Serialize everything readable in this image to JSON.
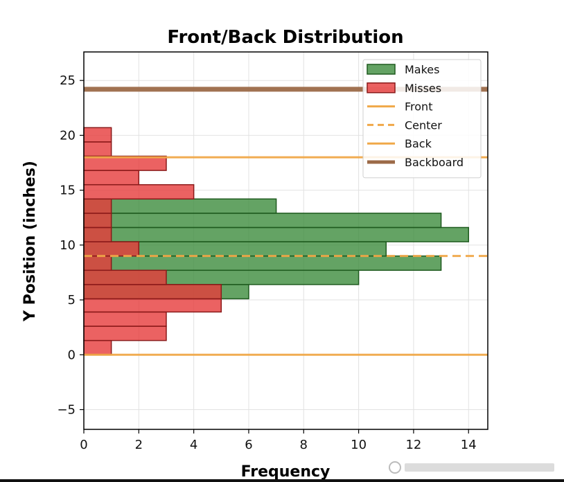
{
  "chart_data": {
    "type": "bar",
    "orientation": "horizontal",
    "title": "Front/Back Distribution",
    "xlabel": "Frequency",
    "ylabel": "Y Position (inches)",
    "xlim": [
      0,
      14.7
    ],
    "ylim": [
      -6.8,
      27.6
    ],
    "xticks": [
      0,
      2,
      4,
      6,
      8,
      10,
      12,
      14
    ],
    "yticks": [
      -5,
      0,
      5,
      10,
      15,
      20,
      25
    ],
    "grid": true,
    "legend_position": "top-right",
    "series": [
      {
        "name": "Makes",
        "color": "#3d8c3d",
        "bins": [
          {
            "y0": 5.1,
            "y1": 6.4,
            "value": 6
          },
          {
            "y0": 6.4,
            "y1": 7.7,
            "value": 10
          },
          {
            "y0": 7.7,
            "y1": 9.0,
            "value": 13
          },
          {
            "y0": 9.0,
            "y1": 10.3,
            "value": 11
          },
          {
            "y0": 10.3,
            "y1": 11.6,
            "value": 14
          },
          {
            "y0": 11.6,
            "y1": 12.9,
            "value": 13
          },
          {
            "y0": 12.9,
            "y1": 14.2,
            "value": 7
          }
        ]
      },
      {
        "name": "Misses",
        "color": "#e84343",
        "bins": [
          {
            "y0": 0.0,
            "y1": 1.3,
            "value": 1
          },
          {
            "y0": 1.3,
            "y1": 2.6,
            "value": 3
          },
          {
            "y0": 2.6,
            "y1": 3.9,
            "value": 3
          },
          {
            "y0": 3.9,
            "y1": 5.1,
            "value": 5
          },
          {
            "y0": 5.1,
            "y1": 6.4,
            "value": 5
          },
          {
            "y0": 6.4,
            "y1": 7.7,
            "value": 3
          },
          {
            "y0": 7.7,
            "y1": 9.0,
            "value": 1
          },
          {
            "y0": 9.0,
            "y1": 10.3,
            "value": 2
          },
          {
            "y0": 10.3,
            "y1": 11.6,
            "value": 1
          },
          {
            "y0": 11.6,
            "y1": 12.9,
            "value": 1
          },
          {
            "y0": 12.9,
            "y1": 14.2,
            "value": 1
          },
          {
            "y0": 14.2,
            "y1": 15.5,
            "value": 4
          },
          {
            "y0": 15.5,
            "y1": 16.8,
            "value": 2
          },
          {
            "y0": 16.8,
            "y1": 18.1,
            "value": 3
          },
          {
            "y0": 18.1,
            "y1": 19.4,
            "value": 1
          },
          {
            "y0": 19.4,
            "y1": 20.7,
            "value": 1
          }
        ]
      }
    ],
    "reference_lines": [
      {
        "name": "Front",
        "y": 0,
        "color": "#f0a848",
        "style": "solid"
      },
      {
        "name": "Center",
        "y": 9,
        "color": "#f0a848",
        "style": "dashed"
      },
      {
        "name": "Back",
        "y": 18,
        "color": "#f0a848",
        "style": "solid"
      },
      {
        "name": "Backboard",
        "y": 24.2,
        "color": "#9c6a48",
        "style": "solid-thick"
      }
    ]
  }
}
